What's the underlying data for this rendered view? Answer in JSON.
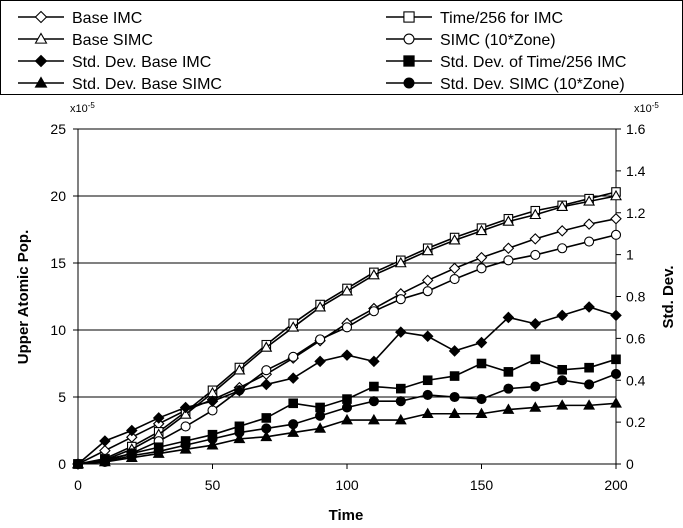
{
  "chart_data": {
    "type": "line",
    "xlabel": "Time",
    "ylabel_left": "Upper Atomic Pop.",
    "ylabel_right": "Std. Dev.",
    "left_exponent": "x10",
    "left_exponent_power": "-5",
    "right_exponent": "x10",
    "right_exponent_power": "-5",
    "xlim": [
      0,
      200
    ],
    "ylim_left": [
      0,
      25
    ],
    "ylim_right": [
      0,
      1.6
    ],
    "x_ticks": [
      "0",
      "50",
      "100",
      "150",
      "200"
    ],
    "y_left_ticks": [
      "0",
      "5",
      "10",
      "15",
      "20",
      "25"
    ],
    "y_right_ticks": [
      "0",
      "0.2",
      "0.4",
      "0.6",
      "0.8",
      "1",
      "1.2",
      "1.4",
      "1.6"
    ],
    "grid": "horizontal",
    "legend_position": "top",
    "x": [
      0,
      10,
      20,
      30,
      40,
      50,
      60,
      70,
      80,
      90,
      100,
      110,
      120,
      130,
      140,
      150,
      160,
      170,
      180,
      190,
      200
    ],
    "series": [
      {
        "name": "Base IMC",
        "axis": "left",
        "marker": "diamond-open",
        "values": [
          0,
          1.0,
          2.0,
          3.0,
          4.0,
          4.8,
          5.7,
          6.7,
          7.9,
          9.2,
          10.5,
          11.6,
          12.7,
          13.7,
          14.6,
          15.4,
          16.1,
          16.8,
          17.4,
          17.9,
          18.3
        ]
      },
      {
        "name": "Time/256 for IMC",
        "axis": "left",
        "marker": "square-open",
        "values": [
          0,
          0.4,
          1.3,
          2.4,
          3.9,
          5.5,
          7.2,
          8.9,
          10.5,
          11.9,
          13.1,
          14.3,
          15.2,
          16.1,
          16.9,
          17.6,
          18.3,
          18.9,
          19.3,
          19.8,
          20.3
        ]
      },
      {
        "name": "Base SIMC",
        "axis": "left",
        "marker": "triangle-open",
        "values": [
          0,
          0.3,
          1.1,
          2.2,
          3.7,
          5.3,
          7.0,
          8.7,
          10.2,
          11.7,
          12.9,
          14.1,
          15.0,
          15.9,
          16.7,
          17.4,
          18.1,
          18.6,
          19.2,
          19.6,
          20.0
        ]
      },
      {
        "name": "SIMC (10*Zone)",
        "axis": "left",
        "marker": "circle-open",
        "values": [
          0,
          0.2,
          0.8,
          1.7,
          2.8,
          4.0,
          5.5,
          7.0,
          8.0,
          9.3,
          10.2,
          11.4,
          12.3,
          12.9,
          13.8,
          14.6,
          15.2,
          15.6,
          16.1,
          16.6,
          17.1
        ]
      },
      {
        "name": "Std. Dev. Base IMC",
        "axis": "right",
        "marker": "diamond-filled",
        "values": [
          0,
          0.11,
          0.16,
          0.22,
          0.27,
          0.3,
          0.35,
          0.38,
          0.41,
          0.49,
          0.52,
          0.49,
          0.63,
          0.61,
          0.54,
          0.58,
          0.7,
          0.67,
          0.71,
          0.75,
          0.71
        ]
      },
      {
        "name": "Std. Dev. of Time/256 IMC",
        "axis": "right",
        "marker": "square-filled",
        "values": [
          0,
          0.02,
          0.05,
          0.08,
          0.11,
          0.14,
          0.18,
          0.22,
          0.29,
          0.27,
          0.31,
          0.37,
          0.36,
          0.4,
          0.42,
          0.48,
          0.44,
          0.5,
          0.45,
          0.46,
          0.5
        ]
      },
      {
        "name": "Std. Dev. Base SIMC",
        "axis": "right",
        "marker": "triangle-filled",
        "values": [
          0,
          0.01,
          0.03,
          0.05,
          0.07,
          0.09,
          0.12,
          0.13,
          0.15,
          0.17,
          0.21,
          0.21,
          0.21,
          0.24,
          0.24,
          0.24,
          0.26,
          0.27,
          0.28,
          0.28,
          0.29
        ]
      },
      {
        "name": "Std. Dev. SIMC (10*Zone)",
        "axis": "right",
        "marker": "circle-filled",
        "values": [
          0,
          0.01,
          0.04,
          0.06,
          0.09,
          0.12,
          0.15,
          0.17,
          0.19,
          0.23,
          0.27,
          0.3,
          0.3,
          0.33,
          0.32,
          0.31,
          0.36,
          0.37,
          0.4,
          0.38,
          0.43
        ]
      }
    ]
  }
}
